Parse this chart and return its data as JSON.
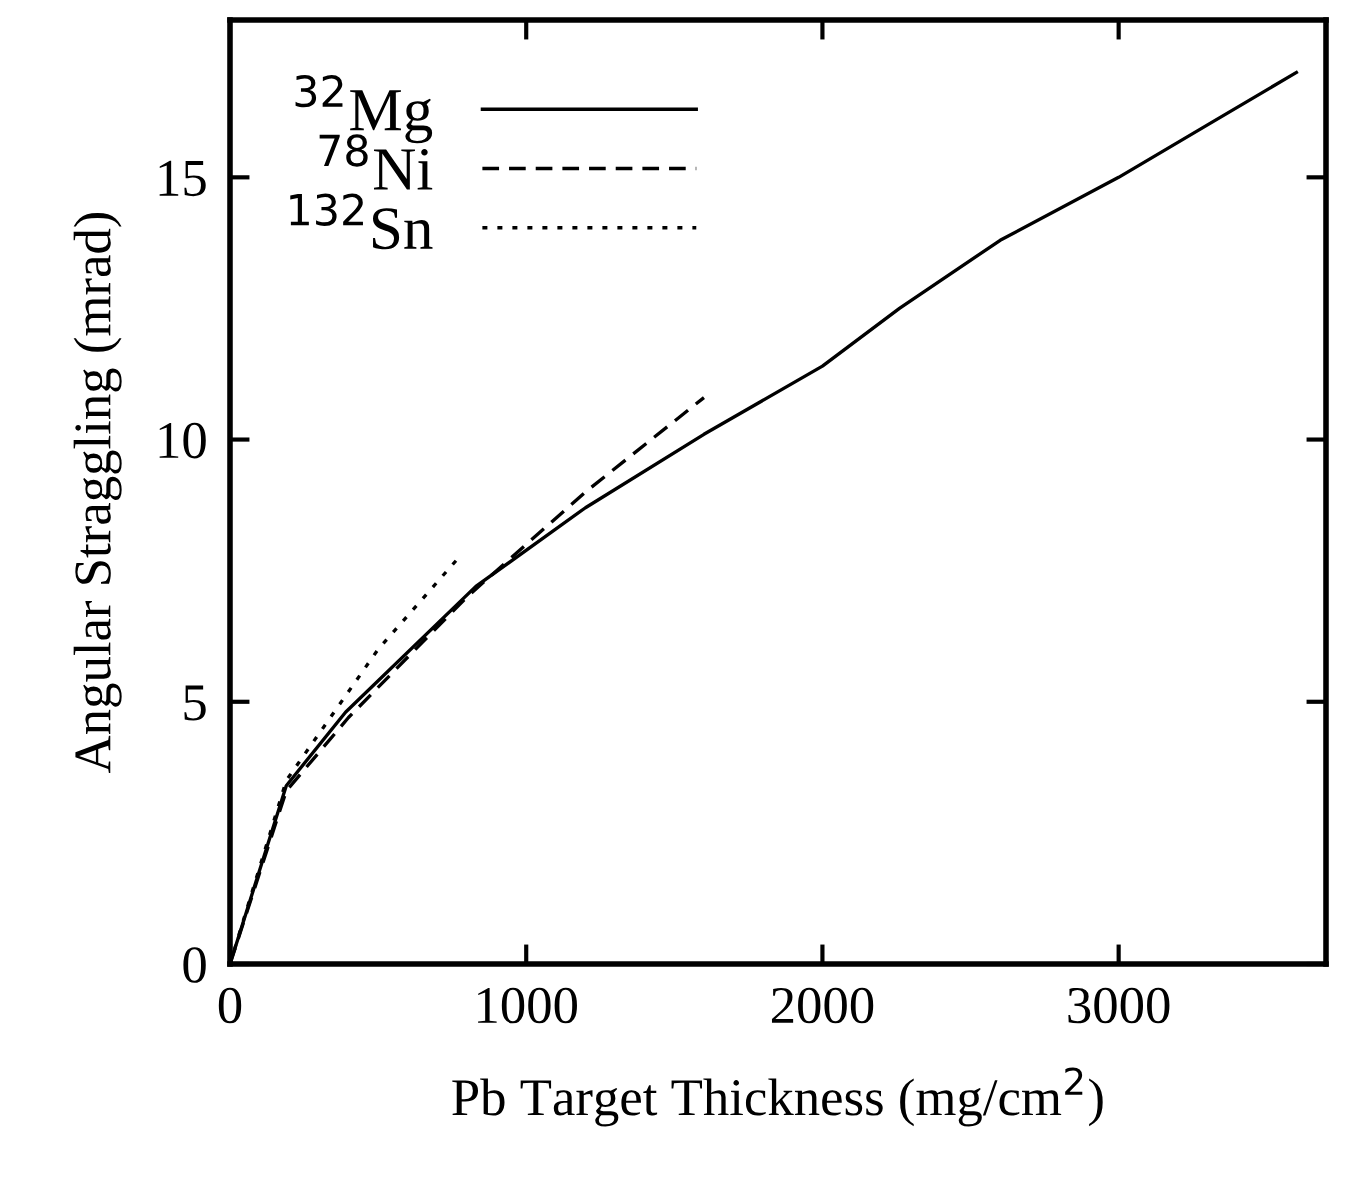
{
  "chart_data": {
    "type": "line",
    "xlabel": "Pb Target Thickness (mg/cm$^{2}$)",
    "ylabel": "Angular Straggling (mrad)",
    "xlim": [
      0,
      3700
    ],
    "ylim": [
      0,
      18
    ],
    "xticks": [
      0,
      1000,
      2000,
      3000
    ],
    "yticks": [
      0,
      5,
      10,
      15
    ],
    "grid": false,
    "legend": "top left",
    "series": [
      {
        "name": "$^{32}$Mg",
        "color": "#000000",
        "line_style": "solid",
        "x": [
          0,
          190,
          390,
          830,
          1200,
          1600,
          2000,
          2260,
          2600,
          3000,
          3300,
          3600
        ],
        "values": [
          0,
          3.4,
          4.8,
          7.2,
          8.7,
          10.1,
          11.4,
          12.5,
          13.8,
          15.0,
          16.0,
          17.0
        ]
      },
      {
        "name": "$^{78}$Ni",
        "color": "#000000",
        "line_style": "dashed",
        "x": [
          0,
          190,
          400,
          800,
          1200,
          1600
        ],
        "values": [
          0,
          3.3,
          4.7,
          7.0,
          9.0,
          10.8
        ]
      },
      {
        "name": "$^{132}$Sn",
        "color": "#000000",
        "line_style": "dotted",
        "x": [
          0,
          190,
          500,
          780
        ],
        "values": [
          0,
          3.5,
          6.0,
          7.8
        ]
      }
    ]
  }
}
